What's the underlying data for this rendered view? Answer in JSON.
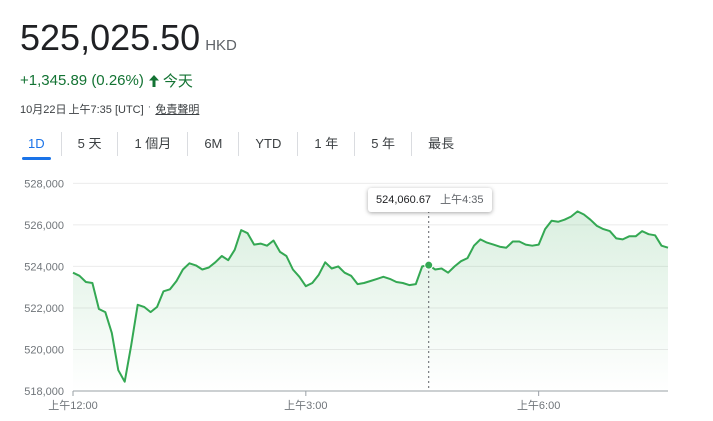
{
  "quote": {
    "price": "525,025.50",
    "currency": "HKD",
    "change": "+1,345.89 (0.26%)",
    "period_label": "今天",
    "date": "10月22日",
    "time": "上午7:35 [UTC]",
    "separator": "·",
    "disclaimer": "免責聲明"
  },
  "tabs": [
    "1D",
    "5 天",
    "1 個月",
    "6M",
    "YTD",
    "1 年",
    "5 年",
    "最長"
  ],
  "active_tab": "1D",
  "colors": {
    "line": "#34a853",
    "up": "#137333",
    "accent": "#1a73e8"
  },
  "icons": {
    "change_arrow": "arrow-up-icon"
  },
  "tooltip": {
    "value": "524,060.67",
    "time": "上午4:35"
  },
  "chart_data": {
    "type": "area",
    "title": "",
    "xlabel": "",
    "ylabel": "",
    "y_ticks": [
      518000,
      520000,
      522000,
      524000,
      526000,
      528000
    ],
    "y_tick_labels": [
      "518,000",
      "520,000",
      "522,000",
      "524,000",
      "526,000",
      "528,000"
    ],
    "ylim": [
      518000,
      528500
    ],
    "x_ticks": [
      0,
      180,
      360
    ],
    "x_tick_labels": [
      "上午12:00",
      "上午3:00",
      "上午6:00"
    ],
    "xlim": [
      0,
      460
    ],
    "x_unit": "minutes since 上午12:00",
    "highlight": {
      "x": 275,
      "y": 524060.67
    },
    "series": [
      {
        "x": [
          0,
          5,
          10,
          15,
          20,
          25,
          30,
          35,
          40,
          45,
          50,
          55,
          60,
          65,
          70,
          75,
          80,
          85,
          90,
          95,
          100,
          105,
          110,
          115,
          120,
          125,
          130,
          135,
          140,
          145,
          150,
          155,
          160,
          165,
          170,
          175,
          180,
          185,
          190,
          195,
          200,
          205,
          210,
          215,
          220,
          225,
          230,
          235,
          240,
          245,
          250,
          255,
          260,
          265,
          270,
          275,
          280,
          285,
          290,
          295,
          300,
          305,
          310,
          315,
          320,
          325,
          330,
          335,
          340,
          345,
          350,
          355,
          360,
          365,
          370,
          375,
          380,
          385,
          390,
          395,
          400,
          405,
          410,
          415,
          420,
          425,
          430,
          435,
          440,
          445,
          450,
          455,
          460
        ],
        "values": [
          523700,
          523550,
          523250,
          523200,
          521950,
          521800,
          520800,
          519000,
          518450,
          520200,
          522150,
          522050,
          521800,
          522050,
          522800,
          522900,
          523300,
          523850,
          524150,
          524050,
          523850,
          523950,
          524200,
          524500,
          524300,
          524800,
          525750,
          525600,
          525050,
          525100,
          525000,
          525250,
          524700,
          524500,
          523850,
          523500,
          523050,
          523200,
          523600,
          524200,
          523900,
          524000,
          523700,
          523550,
          523150,
          523200,
          523300,
          523400,
          523500,
          523400,
          523250,
          523200,
          523100,
          523150,
          524000,
          524060,
          523850,
          523900,
          523700,
          524000,
          524250,
          524400,
          525000,
          525300,
          525150,
          525050,
          524950,
          524900,
          525200,
          525200,
          525050,
          525000,
          525050,
          525800,
          526200,
          526150,
          526250,
          526400,
          526650,
          526500,
          526250,
          525950,
          525800,
          525700,
          525350,
          525300,
          525450,
          525450,
          525700,
          525550,
          525500,
          525000,
          524900
        ]
      }
    ]
  }
}
